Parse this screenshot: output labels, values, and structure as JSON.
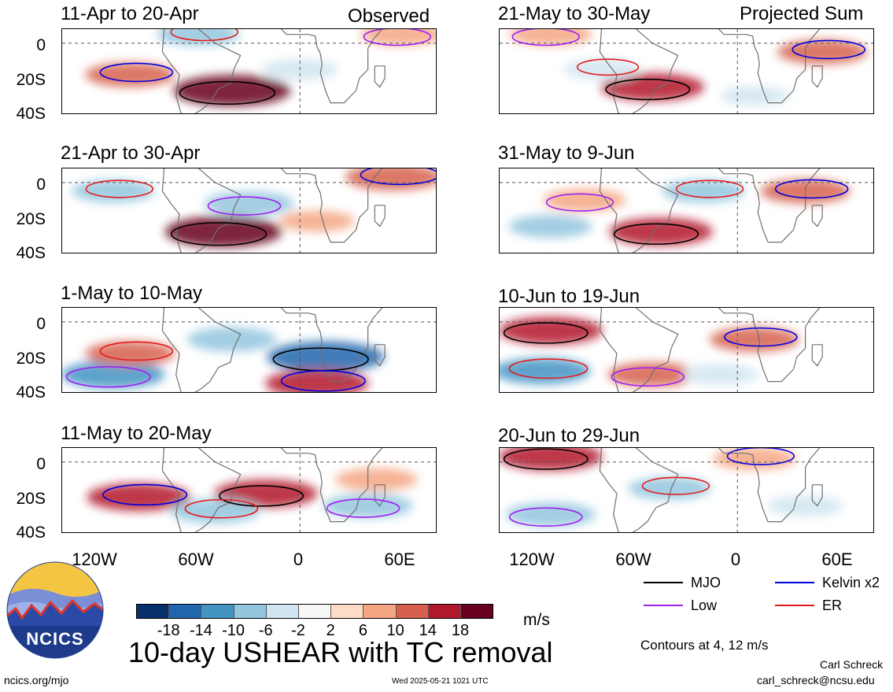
{
  "header": {
    "left_tag": "Observed",
    "right_tag": "Projected Sum"
  },
  "chart_data": {
    "type": "heatmap",
    "title": "10-day USHEAR with TC removal",
    "y_tick_labels": [
      "0",
      "20S",
      "40S"
    ],
    "x_tick_labels": [
      "120W",
      "60W",
      "0",
      "60E"
    ],
    "x_ticks": [
      -120,
      -60,
      0,
      60
    ],
    "y_ticks": [
      0,
      -20,
      -40
    ],
    "xlim": [
      -140,
      80
    ],
    "ylim": [
      -40,
      8
    ],
    "panels": [
      {
        "label": "11-Apr to 20-Apr",
        "column": "Observed",
        "features": [
          {
            "lon": -40,
            "lat": -27,
            "value": 18
          },
          {
            "lon": -100,
            "lat": -18,
            "value": 10
          },
          {
            "lon": 60,
            "lat": 5,
            "value": 8
          },
          {
            "lon": -60,
            "lat": 5,
            "value": -8
          },
          {
            "lon": 0,
            "lat": -15,
            "value": -6
          }
        ]
      },
      {
        "label": "21-Apr to 30-Apr",
        "column": "Observed",
        "features": [
          {
            "lon": -45,
            "lat": -28,
            "value": 18
          },
          {
            "lon": 55,
            "lat": 3,
            "value": 12
          },
          {
            "lon": -30,
            "lat": -12,
            "value": -10
          },
          {
            "lon": -110,
            "lat": -5,
            "value": -8
          },
          {
            "lon": 10,
            "lat": -22,
            "value": 6
          }
        ]
      },
      {
        "label": "1-May to 10-May",
        "column": "Observed",
        "features": [
          {
            "lon": 15,
            "lat": -20,
            "value": -18
          },
          {
            "lon": 10,
            "lat": -35,
            "value": 14
          },
          {
            "lon": -110,
            "lat": -30,
            "value": -14
          },
          {
            "lon": -100,
            "lat": -18,
            "value": 10
          },
          {
            "lon": -40,
            "lat": -10,
            "value": -10
          }
        ]
      },
      {
        "label": "11-May to 20-May",
        "column": "Observed",
        "features": [
          {
            "lon": -20,
            "lat": -18,
            "value": 14
          },
          {
            "lon": -95,
            "lat": -20,
            "value": 14
          },
          {
            "lon": 40,
            "lat": -25,
            "value": -10
          },
          {
            "lon": -50,
            "lat": -28,
            "value": -10
          },
          {
            "lon": 45,
            "lat": -10,
            "value": 8
          }
        ]
      },
      {
        "label": "21-May to 30-May",
        "column": "Projected Sum",
        "features": [
          {
            "lon": -50,
            "lat": -25,
            "value": 14
          },
          {
            "lon": 50,
            "lat": -5,
            "value": 10
          },
          {
            "lon": -110,
            "lat": 5,
            "value": 8
          },
          {
            "lon": -80,
            "lat": -15,
            "value": -6
          },
          {
            "lon": 10,
            "lat": -30,
            "value": -4
          }
        ]
      },
      {
        "label": "31-May to 9-Jun",
        "column": "Projected Sum",
        "features": [
          {
            "lon": -45,
            "lat": -28,
            "value": 14
          },
          {
            "lon": 40,
            "lat": -5,
            "value": 10
          },
          {
            "lon": -90,
            "lat": -10,
            "value": 8
          },
          {
            "lon": -20,
            "lat": -5,
            "value": -8
          },
          {
            "lon": -110,
            "lat": -25,
            "value": -8
          }
        ]
      },
      {
        "label": "10-Jun to 19-Jun",
        "column": "Projected Sum",
        "features": [
          {
            "lon": -110,
            "lat": -5,
            "value": 14
          },
          {
            "lon": 10,
            "lat": -10,
            "value": 10
          },
          {
            "lon": -50,
            "lat": -30,
            "value": 10
          },
          {
            "lon": -115,
            "lat": -28,
            "value": -12
          },
          {
            "lon": -10,
            "lat": -30,
            "value": -6
          }
        ]
      },
      {
        "label": "20-Jun to 29-Jun",
        "column": "Projected Sum",
        "features": [
          {
            "lon": -110,
            "lat": 3,
            "value": 14
          },
          {
            "lon": 10,
            "lat": 2,
            "value": 8
          },
          {
            "lon": -110,
            "lat": -30,
            "value": -10
          },
          {
            "lon": -40,
            "lat": -15,
            "value": -8
          },
          {
            "lon": 40,
            "lat": -25,
            "value": -6
          }
        ]
      }
    ],
    "colorbar": {
      "unit": "m/s",
      "ticks": [
        "-18",
        "-14",
        "-10",
        "-6",
        "-2",
        "2",
        "6",
        "10",
        "14",
        "18"
      ],
      "colors": [
        "#08306b",
        "#2166ac",
        "#4393c3",
        "#92c5de",
        "#d1e5f0",
        "#f7f7f7",
        "#fddbc7",
        "#f4a582",
        "#d6604d",
        "#b2182b",
        "#67001f"
      ]
    },
    "legend": [
      {
        "name": "MJO",
        "color": "#000000"
      },
      {
        "name": "Kelvin x2",
        "color": "#0000dd"
      },
      {
        "name": "Low",
        "color": "#a020f0"
      },
      {
        "name": "ER",
        "color": "#e41a1c"
      }
    ],
    "contour_note": "Contours at 4, 12 m/s"
  },
  "footer": {
    "logo_text": "NCICS",
    "left_url": "ncics.org/mjo",
    "timestamp": "Wed 2025-05-21 1021 UTC",
    "author": "Carl Schreck",
    "email": "carl_schreck@ncsu.edu"
  }
}
